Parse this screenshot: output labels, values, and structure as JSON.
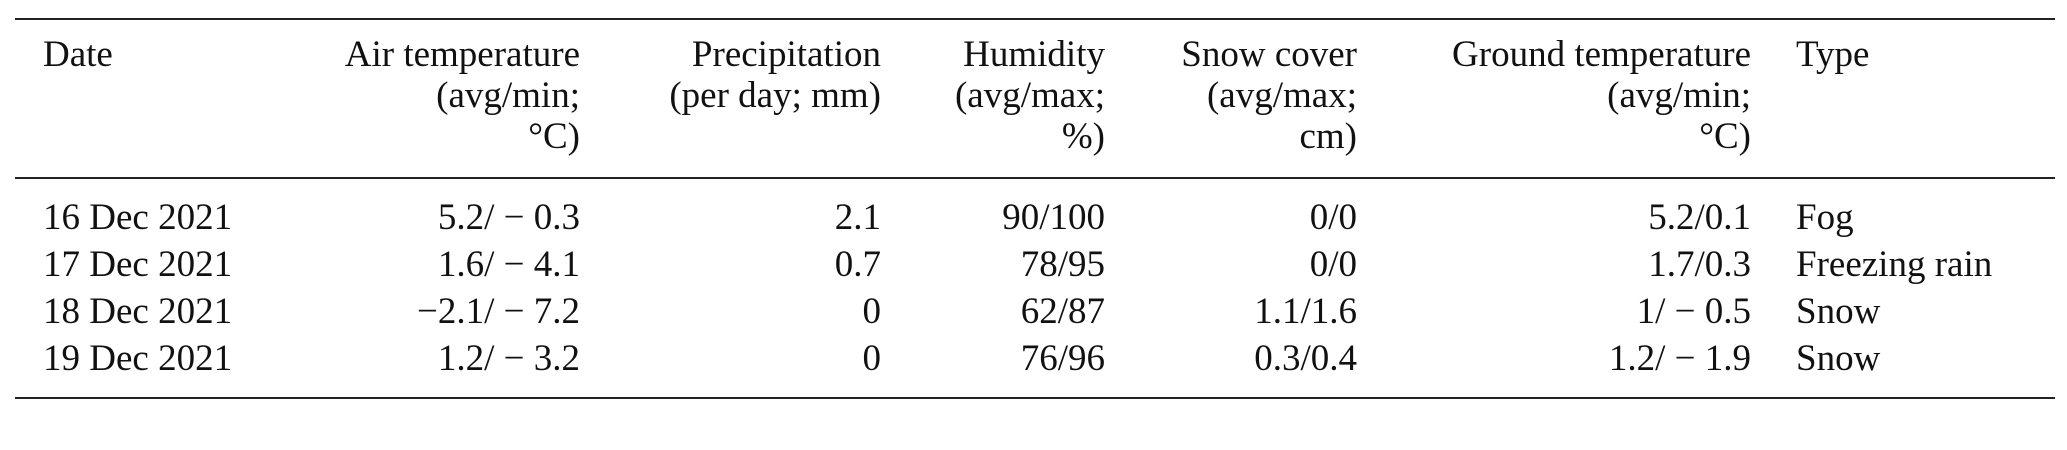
{
  "table": {
    "headers": [
      {
        "key": "date",
        "lines": [
          "Date"
        ],
        "align": "left"
      },
      {
        "key": "air",
        "lines": [
          "Air temperature",
          "(avg/min;",
          "°C)"
        ],
        "align": "right"
      },
      {
        "key": "precip",
        "lines": [
          "Precipitation",
          "(per day; mm)"
        ],
        "align": "right"
      },
      {
        "key": "humidity",
        "lines": [
          "Humidity",
          "(avg/max;",
          "%)"
        ],
        "align": "right"
      },
      {
        "key": "snow",
        "lines": [
          "Snow cover",
          "(avg/max;",
          "cm)"
        ],
        "align": "right"
      },
      {
        "key": "ground",
        "lines": [
          "Ground temperature",
          "(avg/min;",
          "°C)"
        ],
        "align": "right"
      },
      {
        "key": "type",
        "lines": [
          "Type"
        ],
        "align": "left"
      }
    ],
    "rows": [
      {
        "date": "16 Dec 2021",
        "air": "5.2/ − 0.3",
        "precip": "2.1",
        "humidity": "90/100",
        "snow": "0/0",
        "ground": "5.2/0.1",
        "type": "Fog"
      },
      {
        "date": "17 Dec 2021",
        "air": "1.6/ − 4.1",
        "precip": "0.7",
        "humidity": "78/95",
        "snow": "0/0",
        "ground": "1.7/0.3",
        "type": "Freezing rain"
      },
      {
        "date": "18 Dec 2021",
        "air": "−2.1/ − 7.2",
        "precip": "0",
        "humidity": "62/87",
        "snow": "1.1/1.6",
        "ground": "1/ − 0.5",
        "type": "Snow"
      },
      {
        "date": "19 Dec 2021",
        "air": "1.2/ − 3.2",
        "precip": "0",
        "humidity": "76/96",
        "snow": "0.3/0.4",
        "ground": "1.2/ − 1.9",
        "type": "Snow"
      }
    ]
  }
}
